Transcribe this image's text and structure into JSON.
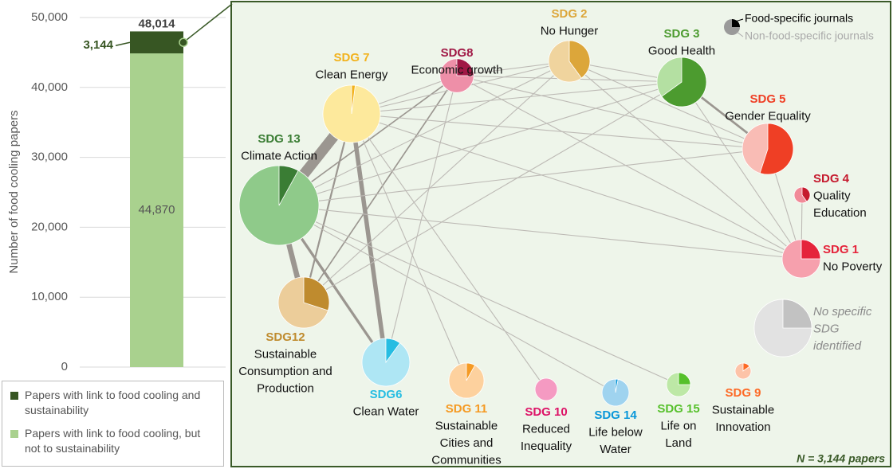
{
  "chart_data": {
    "type": "stacked_bar",
    "y_label": "Number of food cooling papers",
    "ylim": [
      0,
      50000
    ],
    "yticks": [
      0,
      {
        "value": 10000,
        "label": "10,000"
      },
      {
        "value": 20000,
        "label": "20,000"
      },
      {
        "value": 30000,
        "label": "30,000"
      },
      {
        "value": 40000,
        "label": "40,000"
      },
      {
        "value": 50000,
        "label": "50,000"
      }
    ],
    "grid": true,
    "series": [
      {
        "name": "Papers with link to food cooling, but not to sustainability",
        "color": "#a9d18e",
        "values": [
          44870
        ],
        "value_labels": [
          "44,870"
        ]
      },
      {
        "name": "Papers with link to food cooling and sustainability",
        "color": "#375623",
        "values": [
          3144
        ],
        "value_labels": [
          "3,144"
        ]
      }
    ],
    "total": 48014,
    "total_label": "48,014"
  },
  "network": {
    "legend": [
      "Food-specific journals",
      "Non-food-specific journals"
    ],
    "note": "N = 3,144 papers",
    "nodes": [
      {
        "code": "SDG 13",
        "name": [
          "Climate Action"
        ],
        "share": 8,
        "papers": 1000,
        "color": "#3a7d34",
        "light": "#8fca8a"
      },
      {
        "code": "SDG 7",
        "name": [
          "Clean Energy"
        ],
        "share": 2,
        "papers": 520,
        "color": "#f2b21c",
        "light": "#fde99c"
      },
      {
        "code": "SDG8",
        "name": [
          "Economic growth"
        ],
        "share": 25,
        "papers": 180,
        "color": "#a01845",
        "light": "#ee8fa8"
      },
      {
        "code": "SDG 2",
        "name": [
          "No Hunger"
        ],
        "share": 40,
        "papers": 270,
        "color": "#dca63a",
        "light": "#f0d49e"
      },
      {
        "code": "SDG 3",
        "name": [
          "Good Health"
        ],
        "share": 65,
        "papers": 385,
        "color": "#4c9b2f",
        "light": "#b4e0a2"
      },
      {
        "code": "SDG 5",
        "name": [
          "Gender Equality"
        ],
        "share": 55,
        "papers": 410,
        "color": "#ef3f25",
        "light": "#f9bcb5"
      },
      {
        "code": "SDG 4",
        "name": [
          "Quality",
          "Education"
        ],
        "share": 40,
        "papers": 40,
        "color": "#c5192d",
        "light": "#f18a98"
      },
      {
        "code": "SDG 1",
        "name": [
          "No Poverty"
        ],
        "share": 25,
        "papers": 230,
        "color": "#e5243b",
        "light": "#f6a0ad"
      },
      {
        "code": "SDG12",
        "name": [
          "Sustainable",
          "Consumption and",
          "Production"
        ],
        "share": 30,
        "papers": 410,
        "color": "#bf8b2e",
        "light": "#eccd9a"
      },
      {
        "code": "SDG6",
        "name": [
          "Clean Water"
        ],
        "share": 10,
        "papers": 360,
        "color": "#26bde2",
        "light": "#aee6f4"
      },
      {
        "code": "SDG 11",
        "name": [
          "Sustainable",
          "Cities and",
          "Communities"
        ],
        "share": 8,
        "papers": 195,
        "color": "#f59a23",
        "light": "#fdd19e"
      },
      {
        "code": "SDG 10",
        "name": [
          "Reduced",
          "Inequality"
        ],
        "share": 0,
        "papers": 78,
        "color": "#dd1367",
        "light": "#f59ac2"
      },
      {
        "code": "SDG 14",
        "name": [
          "Life below",
          "Water"
        ],
        "share": 3,
        "papers": 115,
        "color": "#0a97d9",
        "light": "#9fd3ef"
      },
      {
        "code": "SDG 15",
        "name": [
          "Life on",
          "Land"
        ],
        "share": 25,
        "papers": 90,
        "color": "#56c02b",
        "light": "#bde8a6"
      },
      {
        "code": "SDG 9",
        "name": [
          "Sustainable",
          "Innovation"
        ],
        "share": 15,
        "papers": 40,
        "color": "#fd6925",
        "light": "#fdc3a8"
      },
      {
        "code": "No specific",
        "name": [
          "SDG",
          "identified"
        ],
        "share": 25,
        "papers": 520,
        "color": "#c2c2c2",
        "light": "#e2e2e2"
      }
    ],
    "edges": [
      {
        "source": 0,
        "target": 1,
        "weight": 12
      },
      {
        "source": 0,
        "target": 8,
        "weight": 6
      },
      {
        "source": 1,
        "target": 9,
        "weight": 5
      },
      {
        "source": 0,
        "target": 9,
        "weight": 3
      },
      {
        "source": 1,
        "target": 8,
        "weight": 2
      },
      {
        "source": 2,
        "target": 8,
        "weight": 1.5
      },
      {
        "source": 2,
        "target": 0,
        "weight": 1.5
      },
      {
        "source": 4,
        "target": 5,
        "weight": 2.5
      },
      {
        "source": 1,
        "target": 2,
        "weight": 1
      },
      {
        "source": 1,
        "target": 3,
        "weight": 1
      },
      {
        "source": 1,
        "target": 4,
        "weight": 1
      },
      {
        "source": 1,
        "target": 5,
        "weight": 1
      },
      {
        "source": 0,
        "target": 4,
        "weight": 1
      },
      {
        "source": 0,
        "target": 5,
        "weight": 1
      },
      {
        "source": 0,
        "target": 7,
        "weight": 1
      },
      {
        "source": 0,
        "target": 3,
        "weight": 1
      },
      {
        "source": 2,
        "target": 3,
        "weight": 1
      },
      {
        "source": 2,
        "target": 4,
        "weight": 1
      },
      {
        "source": 2,
        "target": 5,
        "weight": 1
      },
      {
        "source": 2,
        "target": 7,
        "weight": 1
      },
      {
        "source": 3,
        "target": 4,
        "weight": 1
      },
      {
        "source": 3,
        "target": 5,
        "weight": 1
      },
      {
        "source": 3,
        "target": 7,
        "weight": 1
      },
      {
        "source": 4,
        "target": 7,
        "weight": 1
      },
      {
        "source": 5,
        "target": 7,
        "weight": 1
      },
      {
        "source": 6,
        "target": 7,
        "weight": 1
      },
      {
        "source": 0,
        "target": 12,
        "weight": 1
      },
      {
        "source": 0,
        "target": 13,
        "weight": 1
      },
      {
        "source": 1,
        "target": 10,
        "weight": 1
      },
      {
        "source": 1,
        "target": 11,
        "weight": 1
      },
      {
        "source": 2,
        "target": 9,
        "weight": 1
      },
      {
        "source": 3,
        "target": 8,
        "weight": 1
      },
      {
        "source": 4,
        "target": 8,
        "weight": 1
      },
      {
        "source": 1,
        "target": 7,
        "weight": 1
      }
    ]
  }
}
